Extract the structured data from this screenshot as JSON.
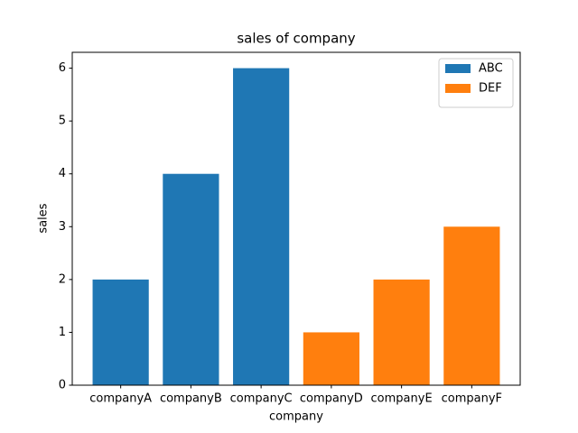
{
  "chart_data": {
    "type": "bar",
    "title": "sales of company",
    "xlabel": "company",
    "ylabel": "sales",
    "categories": [
      "companyA",
      "companyB",
      "companyC",
      "companyD",
      "companyE",
      "companyF"
    ],
    "series": [
      {
        "name": "ABC",
        "color": "#1f77b4",
        "values": [
          2,
          4,
          6,
          null,
          null,
          null
        ]
      },
      {
        "name": "DEF",
        "color": "#ff7f0e",
        "values": [
          null,
          null,
          null,
          1,
          2,
          3
        ]
      }
    ],
    "ylim": [
      0,
      6.3
    ],
    "yticks": [
      0,
      1,
      2,
      3,
      4,
      5,
      6
    ],
    "legend": "upper right"
  }
}
